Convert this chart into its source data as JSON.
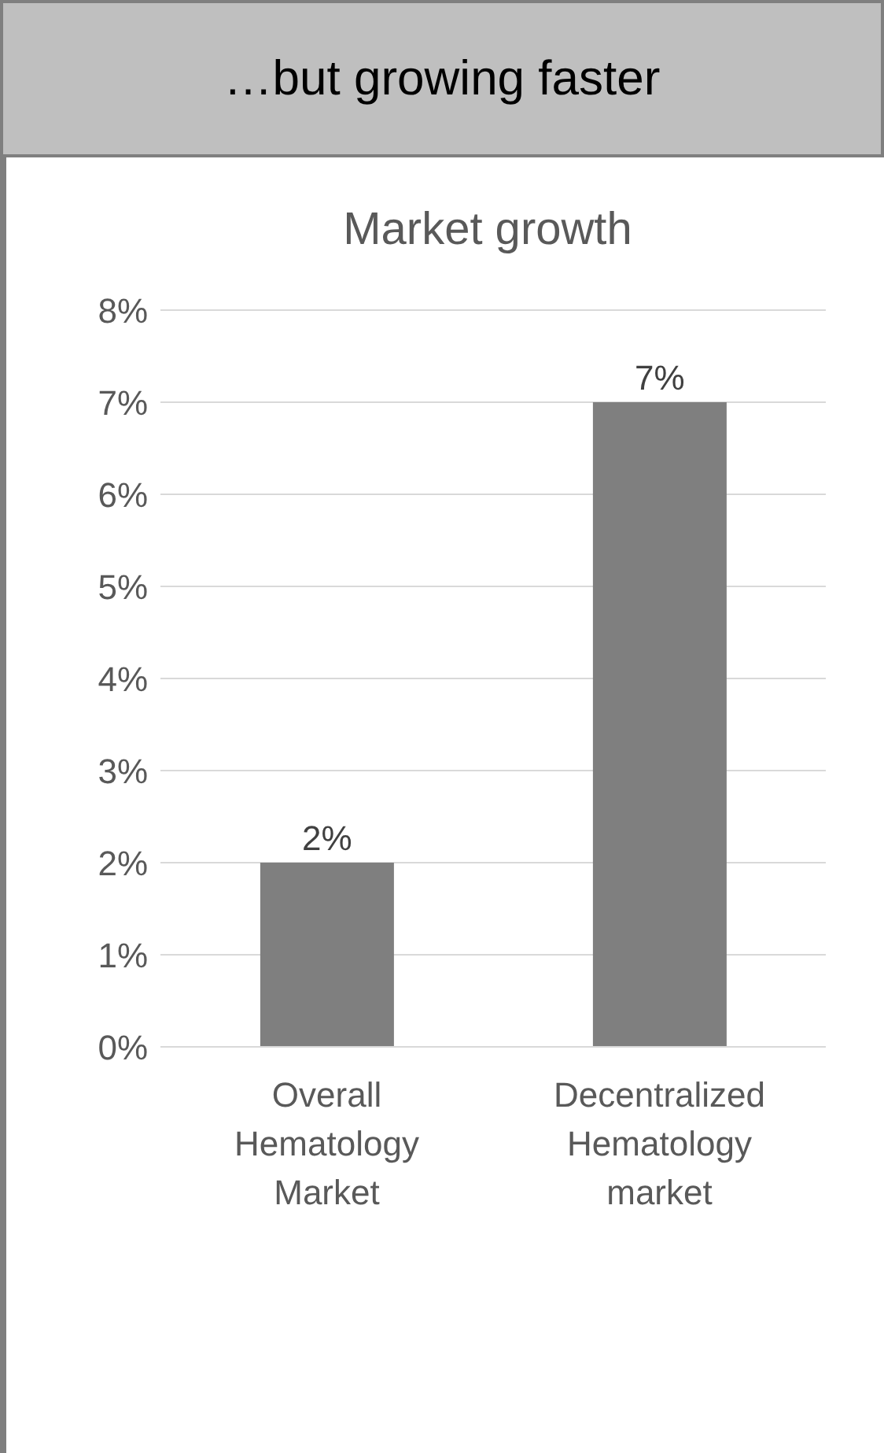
{
  "chart_data": {
    "type": "bar",
    "title": "…but growing faster",
    "subtitle": "Market growth",
    "categories": [
      "Overall Hematology Market",
      "Decentralized Hematology market"
    ],
    "values": [
      2,
      7
    ],
    "color": "#7f7f7f",
    "value_labels": [
      "2%",
      "7%"
    ],
    "ylim": [
      0,
      8
    ],
    "yticks": [
      {
        "value": 0,
        "label": "0%"
      },
      {
        "value": 1,
        "label": "1%"
      },
      {
        "value": 2,
        "label": "2%"
      },
      {
        "value": 3,
        "label": "3%"
      },
      {
        "value": 4,
        "label": "4%"
      },
      {
        "value": 5,
        "label": "5%"
      },
      {
        "value": 6,
        "label": "6%"
      },
      {
        "value": 7,
        "label": "7%"
      },
      {
        "value": 8,
        "label": "8%"
      }
    ],
    "grid": "y"
  }
}
